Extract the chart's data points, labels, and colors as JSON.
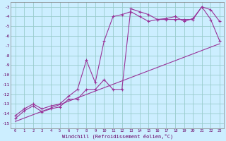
{
  "xlabel": "Windchill (Refroidissement éolien,°C)",
  "xlim": [
    -0.5,
    23.5
  ],
  "ylim": [
    -15.5,
    -2.5
  ],
  "yticks": [
    -15,
    -14,
    -13,
    -12,
    -11,
    -10,
    -9,
    -8,
    -7,
    -6,
    -5,
    -4,
    -3
  ],
  "xticks": [
    0,
    1,
    2,
    3,
    4,
    5,
    6,
    7,
    8,
    9,
    10,
    11,
    12,
    13,
    14,
    15,
    16,
    17,
    18,
    19,
    20,
    21,
    22,
    23
  ],
  "bg_color": "#cceeff",
  "grid_color": "#99cccc",
  "line_color": "#993399",
  "line1_x": [
    0,
    1,
    2,
    3,
    4,
    5,
    6,
    7,
    8,
    9,
    10,
    11,
    12,
    13,
    14,
    15,
    16,
    17,
    18,
    19,
    20,
    21,
    22,
    23
  ],
  "line1_y": [
    -14.5,
    -13.7,
    -13.2,
    -13.8,
    -13.5,
    -13.3,
    -12.5,
    -12.5,
    -11.5,
    -11.5,
    -10.5,
    -11.5,
    -11.5,
    -3.2,
    -3.5,
    -3.8,
    -4.3,
    -4.2,
    -4.0,
    -4.5,
    -4.2,
    -3.0,
    -3.3,
    -4.5
  ],
  "line2_x": [
    0,
    1,
    2,
    3,
    4,
    5,
    6,
    7,
    8,
    9,
    10,
    11,
    12,
    13,
    14,
    15,
    16,
    17,
    18,
    19,
    20,
    21,
    22,
    23
  ],
  "line2_y": [
    -14.2,
    -13.5,
    -13.0,
    -13.5,
    -13.2,
    -13.0,
    -12.2,
    -11.5,
    -8.5,
    -10.8,
    -6.5,
    -4.0,
    -3.8,
    -3.5,
    -4.0,
    -4.5,
    -4.3,
    -4.3,
    -4.3,
    -4.3,
    -4.3,
    -3.0,
    -4.3,
    -6.5
  ],
  "line3_x": [
    0,
    23
  ],
  "line3_y": [
    -14.8,
    -6.8
  ]
}
